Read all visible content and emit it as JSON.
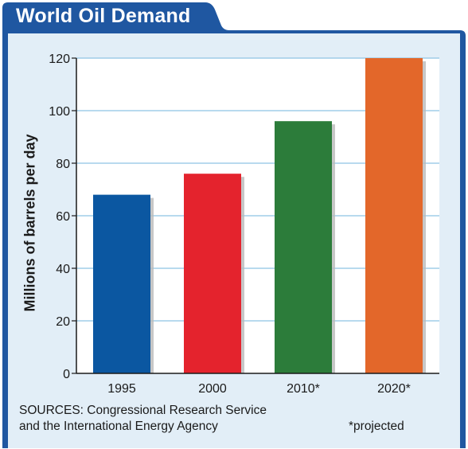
{
  "title": "World Oil Demand",
  "sources": {
    "line1": "SOURCES: Congressional Research Service",
    "line2": "and the International Energy Agency"
  },
  "note": "*projected",
  "colors": {
    "frame_blue": "#1f57a1",
    "panel_bg": "#e2eef7",
    "grid": "#8ec3e3"
  },
  "chart_data": {
    "type": "bar",
    "title": "World Oil Demand",
    "xlabel": "",
    "ylabel": "Millions of barrels per day",
    "categories": [
      "1995",
      "2000",
      "2010*",
      "2020*"
    ],
    "values": [
      68,
      76,
      96,
      120
    ],
    "colors": [
      "#0b57a1",
      "#e4232d",
      "#2c7c3a",
      "#e3672a"
    ],
    "ylim": [
      0,
      120
    ],
    "yticks": [
      0,
      20,
      40,
      60,
      80,
      100,
      120
    ],
    "grid": true,
    "legend": "none"
  }
}
